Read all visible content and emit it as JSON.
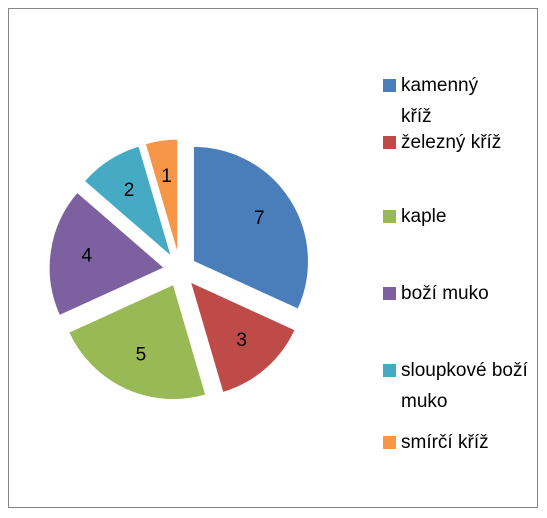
{
  "chart_data": {
    "type": "pie",
    "categories": [
      "kamenný kříž",
      "železný kříž",
      "kaple",
      "boží muko",
      "sloupkové boží muko",
      "smírčí kříž"
    ],
    "values": [
      7,
      3,
      5,
      4,
      2,
      1
    ],
    "colors": [
      "#4a7ebb",
      "#be4b48",
      "#98b954",
      "#7d60a0",
      "#46aac5",
      "#f79646"
    ],
    "exploded": true,
    "legend": "right"
  }
}
